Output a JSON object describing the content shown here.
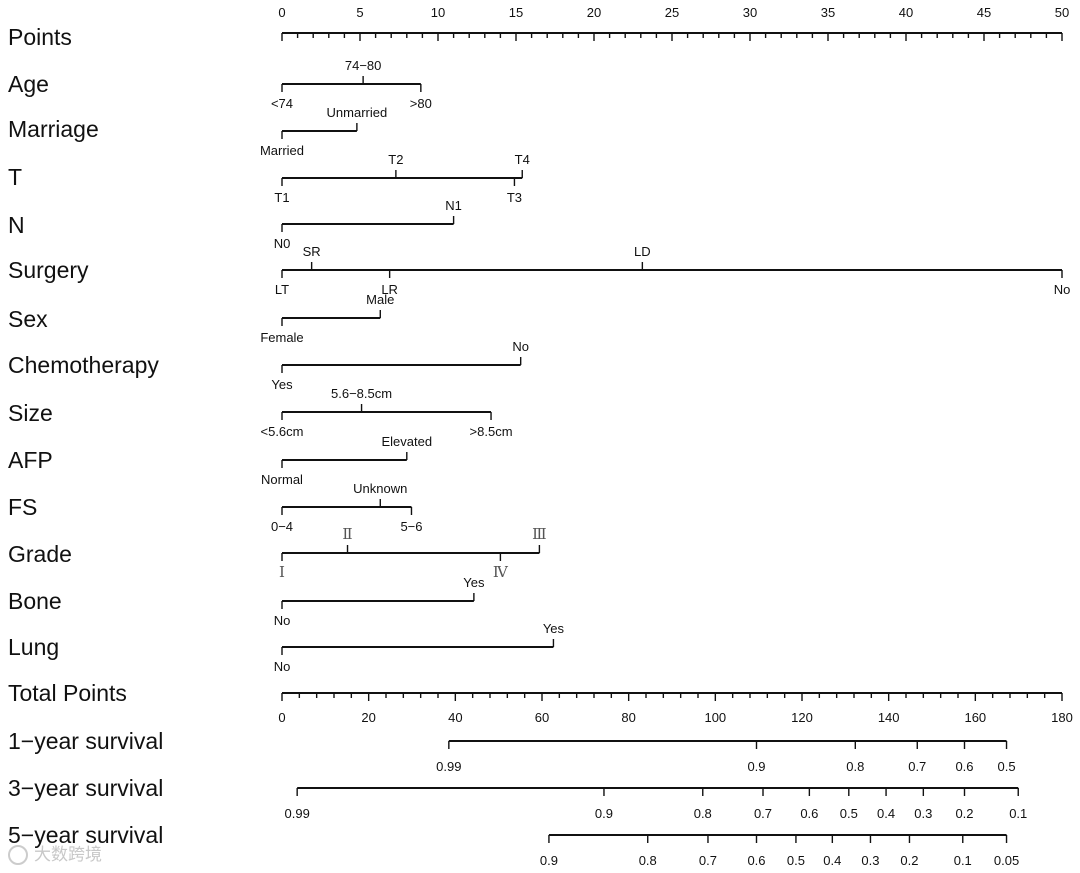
{
  "watermark": "大数跨境",
  "chart_data": {
    "type": "nomogram",
    "title": "",
    "points_axis": {
      "label": "Points",
      "range": [
        0,
        50
      ],
      "major_ticks": [
        0,
        5,
        10,
        15,
        20,
        25,
        30,
        35,
        40,
        45,
        50
      ],
      "minor_step": 1
    },
    "variables": [
      {
        "label": "Age",
        "levels": [
          {
            "name": "<74",
            "points": 0,
            "pos": "below"
          },
          {
            "name": "74−80",
            "points": 5.2,
            "pos": "above"
          },
          {
            "name": ">80",
            "points": 8.9,
            "pos": "below"
          }
        ]
      },
      {
        "label": "Marriage",
        "levels": [
          {
            "name": "Married",
            "points": 0,
            "pos": "below"
          },
          {
            "name": "Unmarried",
            "points": 4.8,
            "pos": "above"
          }
        ]
      },
      {
        "label": "T",
        "levels": [
          {
            "name": "T1",
            "points": 0,
            "pos": "below"
          },
          {
            "name": "T2",
            "points": 7.3,
            "pos": "above"
          },
          {
            "name": "T3",
            "points": 14.9,
            "pos": "below"
          },
          {
            "name": "T4",
            "points": 15.4,
            "pos": "above"
          }
        ]
      },
      {
        "label": "N",
        "levels": [
          {
            "name": "N0",
            "points": 0,
            "pos": "below"
          },
          {
            "name": "N1",
            "points": 11,
            "pos": "above"
          }
        ]
      },
      {
        "label": "Surgery",
        "levels": [
          {
            "name": "LT",
            "points": 0,
            "pos": "below"
          },
          {
            "name": "SR",
            "points": 1.9,
            "pos": "above"
          },
          {
            "name": "LR",
            "points": 6.9,
            "pos": "below"
          },
          {
            "name": "LD",
            "points": 23.1,
            "pos": "above"
          },
          {
            "name": "No",
            "points": 50,
            "pos": "below"
          }
        ]
      },
      {
        "label": "Sex",
        "levels": [
          {
            "name": "Female",
            "points": 0,
            "pos": "below"
          },
          {
            "name": "Male",
            "points": 6.3,
            "pos": "above"
          }
        ]
      },
      {
        "label": "Chemotherapy",
        "levels": [
          {
            "name": "Yes",
            "points": 0,
            "pos": "below"
          },
          {
            "name": "No",
            "points": 15.3,
            "pos": "above"
          }
        ]
      },
      {
        "label": "Size",
        "levels": [
          {
            "name": "<5.6cm",
            "points": 0,
            "pos": "below"
          },
          {
            "name": "5.6−8.5cm",
            "points": 5.1,
            "pos": "above"
          },
          {
            "name": ">8.5cm",
            "points": 13.4,
            "pos": "below"
          }
        ]
      },
      {
        "label": "AFP",
        "levels": [
          {
            "name": "Normal",
            "points": 0,
            "pos": "below"
          },
          {
            "name": "Elevated",
            "points": 8,
            "pos": "above"
          }
        ]
      },
      {
        "label": "FS",
        "levels": [
          {
            "name": "0−4",
            "points": 0,
            "pos": "below"
          },
          {
            "name": "Unknown",
            "points": 6.3,
            "pos": "above"
          },
          {
            "name": "5−6",
            "points": 8.3,
            "pos": "below"
          }
        ]
      },
      {
        "label": "Grade",
        "levels": [
          {
            "name": "Ⅰ",
            "points": 0,
            "pos": "below"
          },
          {
            "name": "Ⅱ",
            "points": 4.2,
            "pos": "above"
          },
          {
            "name": "Ⅳ",
            "points": 14,
            "pos": "below"
          },
          {
            "name": "Ⅲ",
            "points": 16.5,
            "pos": "above"
          }
        ]
      },
      {
        "label": "Bone",
        "levels": [
          {
            "name": "No",
            "points": 0,
            "pos": "below"
          },
          {
            "name": "Yes",
            "points": 12.3,
            "pos": "above"
          }
        ]
      },
      {
        "label": "Lung",
        "levels": [
          {
            "name": "No",
            "points": 0,
            "pos": "below"
          },
          {
            "name": "Yes",
            "points": 17.4,
            "pos": "above"
          }
        ]
      }
    ],
    "total_points_axis": {
      "label": "Total Points",
      "range": [
        0,
        180
      ],
      "major_ticks": [
        0,
        20,
        40,
        60,
        80,
        100,
        120,
        140,
        160,
        180
      ],
      "minor_step": 4
    },
    "survival_scales": [
      {
        "label": "1−year survival",
        "probabilities": [
          "0.99",
          "0.9",
          "0.8",
          "0.7",
          "0.6",
          "0.5"
        ],
        "total_points": [
          38.5,
          109.5,
          132.3,
          146.6,
          157.5,
          167.2
        ]
      },
      {
        "label": "3−year survival",
        "probabilities": [
          "0.99",
          "0.9",
          "0.8",
          "0.7",
          "0.6",
          "0.5",
          "0.4",
          "0.3",
          "0.2",
          "0.1"
        ],
        "total_points": [
          3.5,
          74.3,
          97.1,
          111,
          121.7,
          130.8,
          139.4,
          148,
          157.5,
          169.9
        ]
      },
      {
        "label": "5−year survival",
        "probabilities": [
          "0.9",
          "0.8",
          "0.7",
          "0.6",
          "0.5",
          "0.4",
          "0.3",
          "0.2",
          "0.1",
          "0.05"
        ],
        "total_points": [
          61.6,
          84.4,
          98.3,
          109.5,
          118.6,
          127,
          135.8,
          144.8,
          157.1,
          167.2
        ]
      }
    ]
  }
}
